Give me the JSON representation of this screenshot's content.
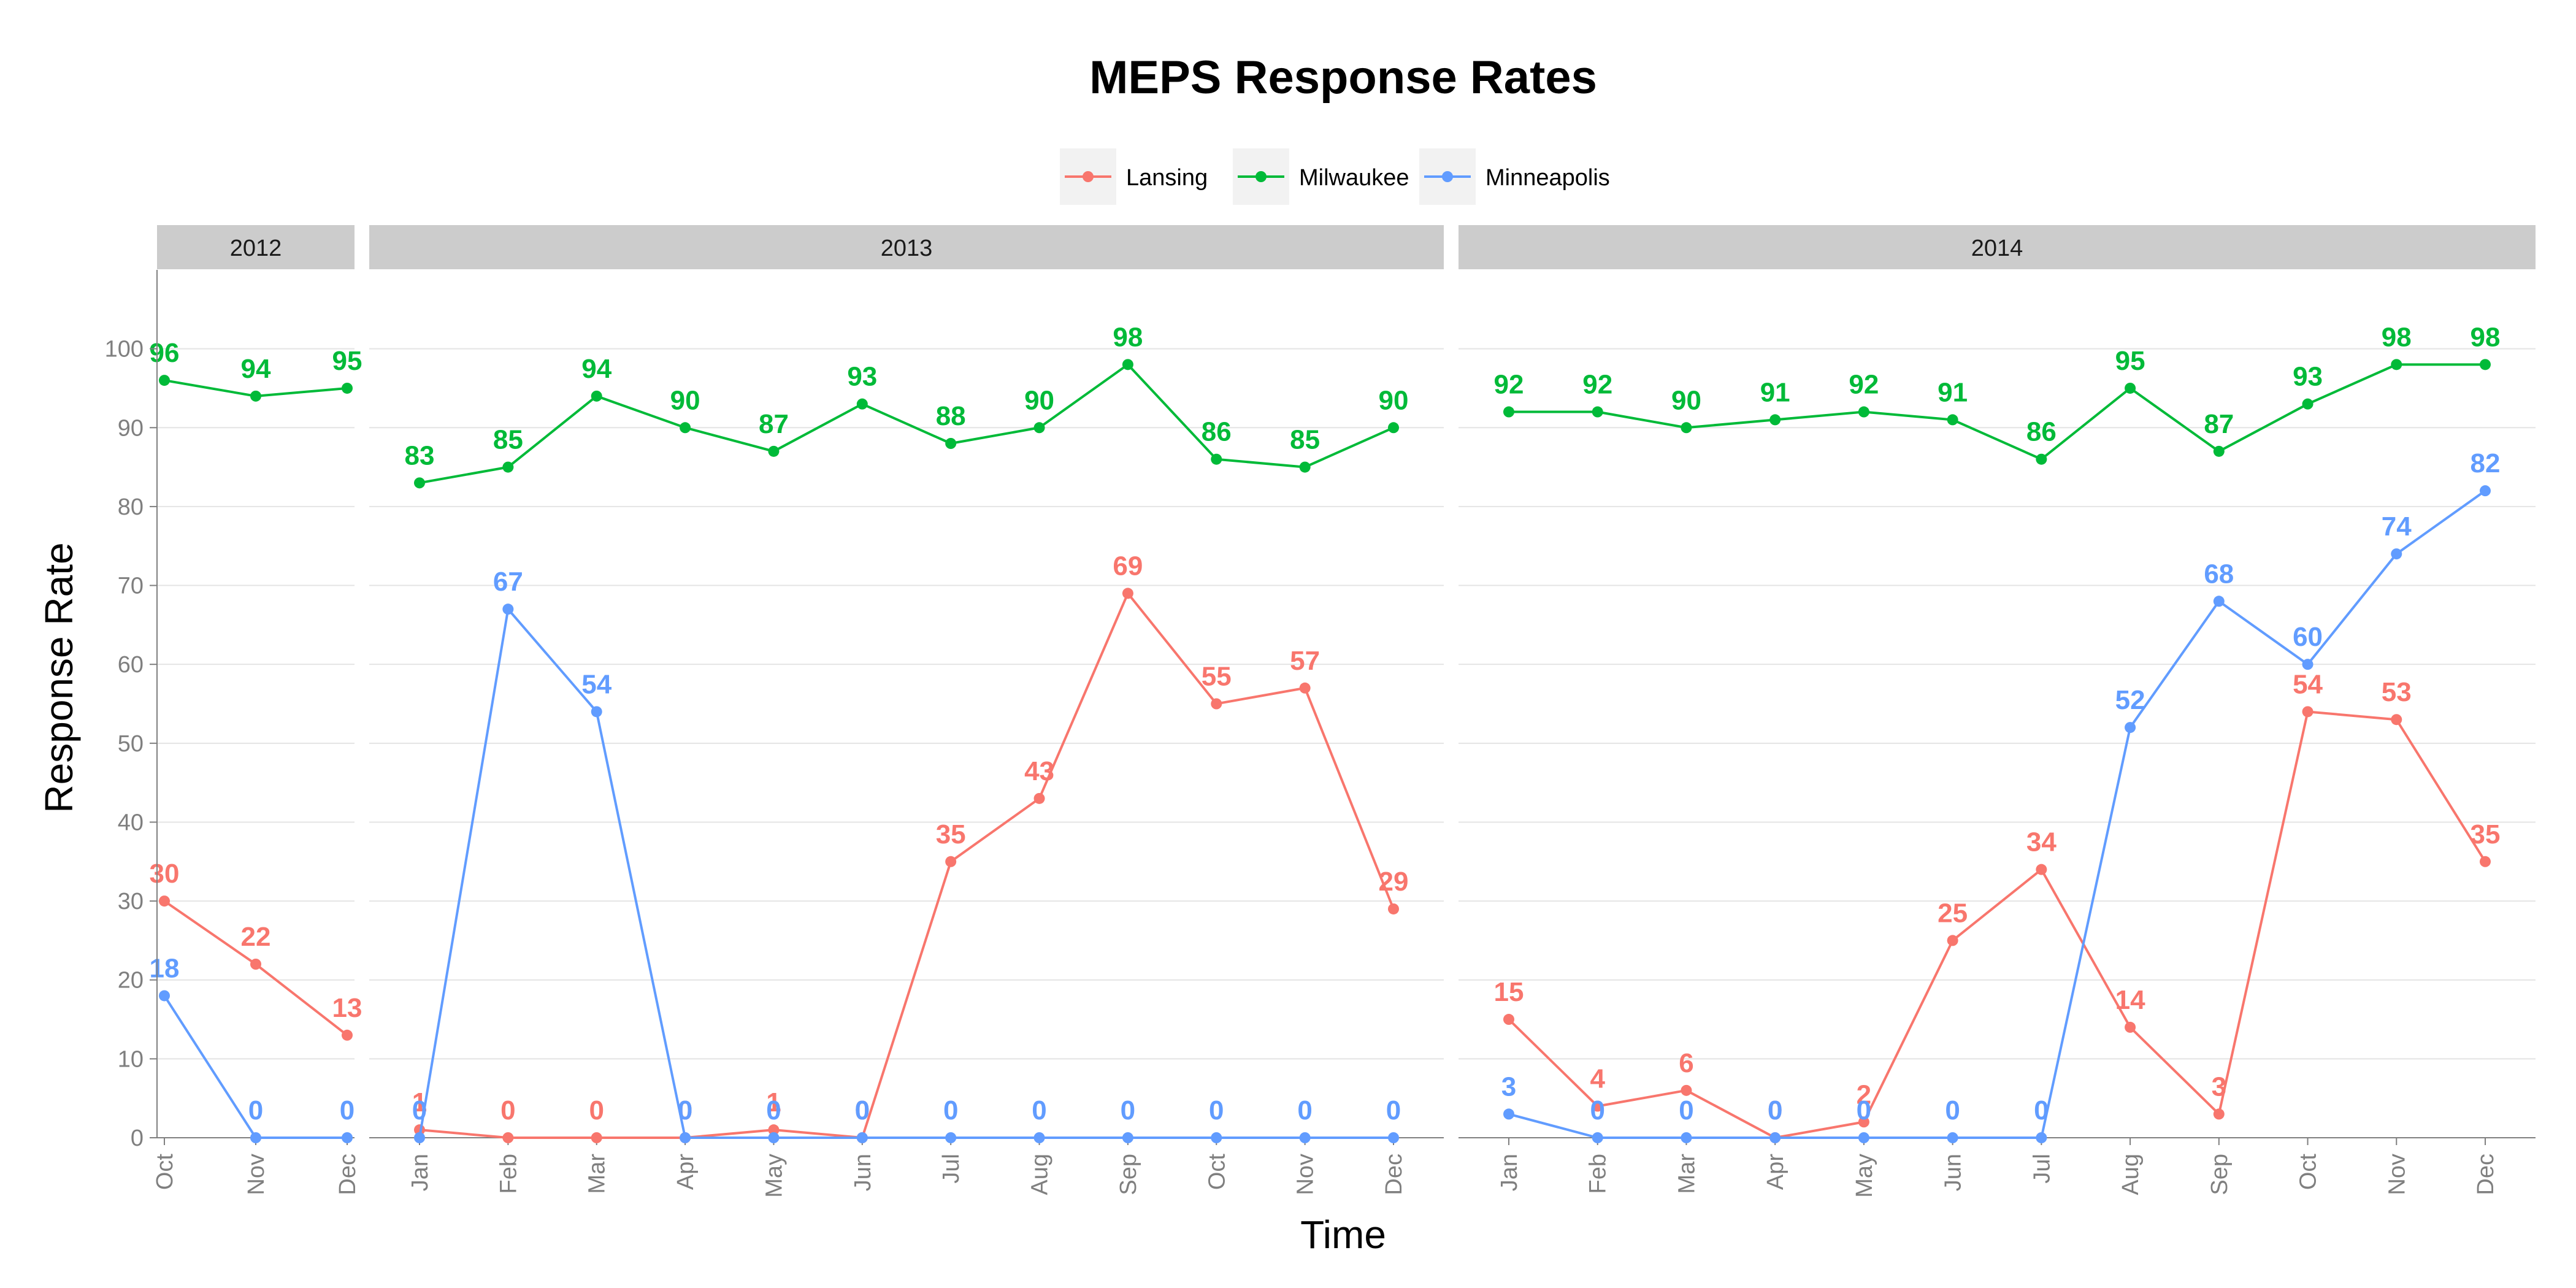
{
  "chart_data": {
    "type": "line",
    "title": "MEPS Response Rates",
    "xlabel": "Time",
    "ylabel": "Response Rate",
    "ylim": [
      0,
      110
    ],
    "yticks": [
      0,
      10,
      20,
      30,
      40,
      50,
      60,
      70,
      80,
      90,
      100
    ],
    "grid": true,
    "legend_position": "top",
    "legend": [
      "Lansing",
      "Milwaukee",
      "Minneapolis"
    ],
    "colors": {
      "Lansing": "#F8766D",
      "Milwaukee": "#00BA38",
      "Minneapolis": "#619CFF"
    },
    "facets": [
      {
        "label": "2012",
        "months": [
          "Oct",
          "Nov",
          "Dec"
        ],
        "series": [
          {
            "name": "Lansing",
            "values": [
              30,
              22,
              13
            ]
          },
          {
            "name": "Milwaukee",
            "values": [
              96,
              94,
              95
            ]
          },
          {
            "name": "Minneapolis",
            "values": [
              18,
              0,
              0
            ]
          }
        ]
      },
      {
        "label": "2013",
        "months": [
          "Jan",
          "Feb",
          "Mar",
          "Apr",
          "May",
          "Jun",
          "Jul",
          "Aug",
          "Sep",
          "Oct",
          "Nov",
          "Dec"
        ],
        "series": [
          {
            "name": "Lansing",
            "values": [
              1,
              0,
              0,
              0,
              1,
              0,
              35,
              43,
              69,
              55,
              57,
              29
            ]
          },
          {
            "name": "Milwaukee",
            "values": [
              83,
              85,
              94,
              90,
              87,
              93,
              88,
              90,
              98,
              86,
              85,
              90
            ]
          },
          {
            "name": "Minneapolis",
            "values": [
              0,
              67,
              54,
              0,
              0,
              0,
              0,
              0,
              0,
              0,
              0,
              0
            ]
          }
        ]
      },
      {
        "label": "2014",
        "months": [
          "Jan",
          "Feb",
          "Mar",
          "Apr",
          "May",
          "Jun",
          "Jul",
          "Aug",
          "Sep",
          "Oct",
          "Nov",
          "Dec"
        ],
        "series": [
          {
            "name": "Lansing",
            "values": [
              15,
              4,
              6,
              0,
              2,
              25,
              34,
              14,
              3,
              54,
              53,
              35
            ]
          },
          {
            "name": "Milwaukee",
            "values": [
              92,
              92,
              90,
              91,
              92,
              91,
              86,
              95,
              87,
              93,
              98,
              98
            ]
          },
          {
            "name": "Minneapolis",
            "values": [
              3,
              0,
              0,
              0,
              0,
              0,
              0,
              52,
              68,
              60,
              74,
              82
            ]
          }
        ]
      }
    ]
  }
}
